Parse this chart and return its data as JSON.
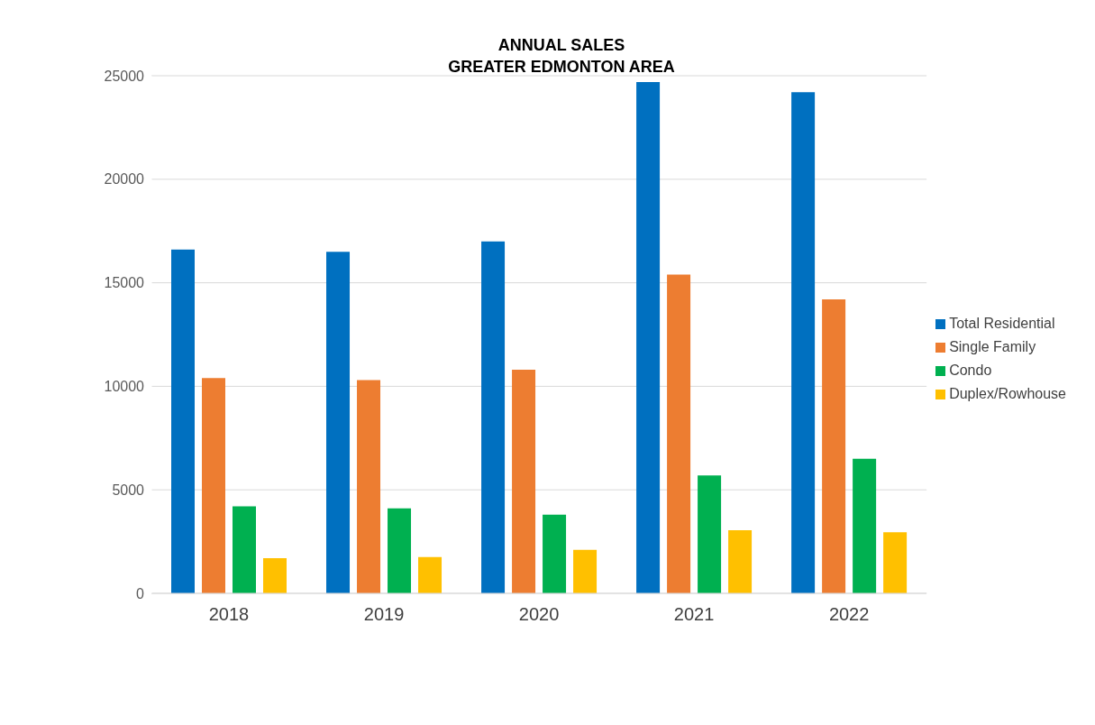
{
  "chart_data": {
    "type": "bar",
    "title": "ANNUAL SALES",
    "subtitle": "GREATER EDMONTON AREA",
    "categories": [
      "2018",
      "2019",
      "2020",
      "2021",
      "2022"
    ],
    "series": [
      {
        "name": "Total Residential",
        "color": "#0070c0",
        "values": [
          16600,
          16500,
          17000,
          24700,
          24200
        ]
      },
      {
        "name": "Single Family",
        "color": "#ed7d31",
        "values": [
          10400,
          10300,
          10800,
          15400,
          14200
        ]
      },
      {
        "name": "Condo",
        "color": "#00b050",
        "values": [
          4200,
          4100,
          3800,
          5700,
          6500
        ]
      },
      {
        "name": "Duplex/Rowhouse",
        "color": "#ffc000",
        "values": [
          1700,
          1750,
          2100,
          3050,
          2950
        ]
      }
    ],
    "ylim": [
      0,
      25000
    ],
    "yticks": [
      0,
      5000,
      10000,
      15000,
      20000,
      25000
    ],
    "grid": "y",
    "legend": "right"
  }
}
